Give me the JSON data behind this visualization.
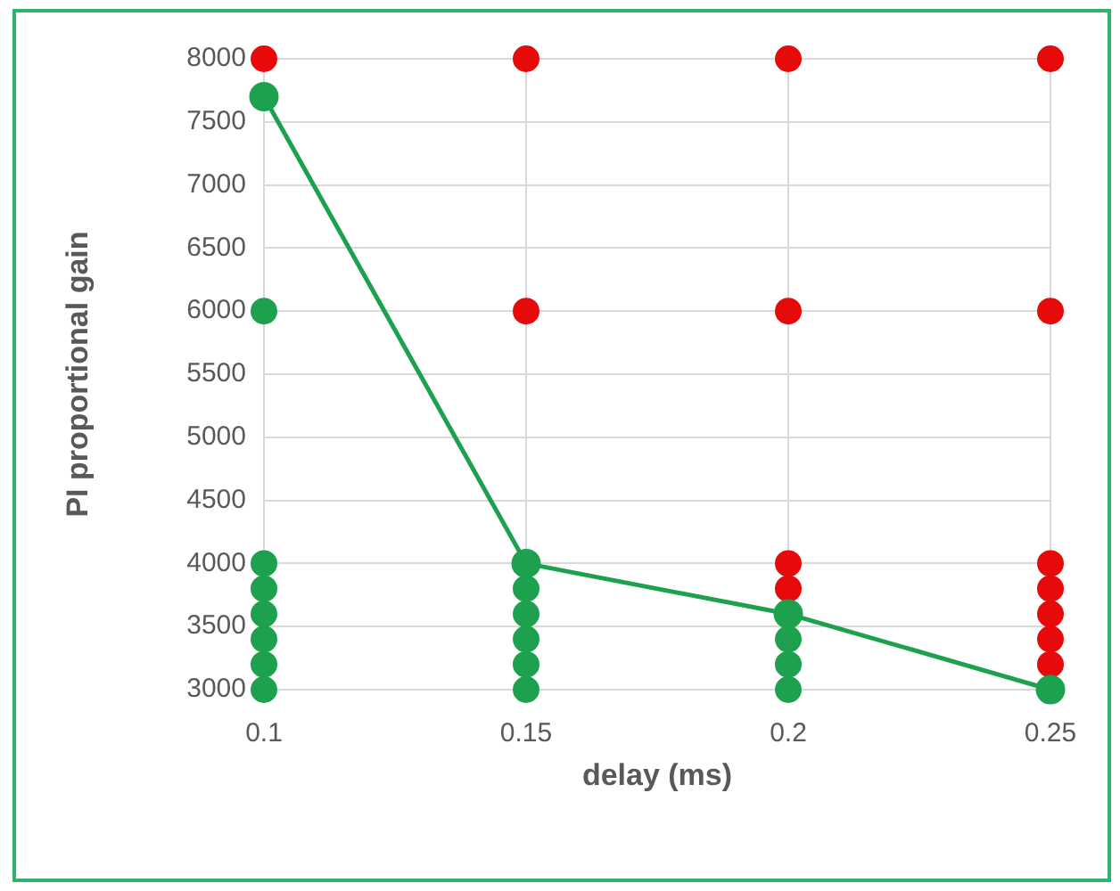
{
  "chart_data": {
    "type": "scatter",
    "xlabel": "delay (ms)",
    "ylabel": "PI proportional gain",
    "xlim": [
      0.1,
      0.25
    ],
    "xticks": [
      0.1,
      0.15,
      0.2,
      0.25
    ],
    "ylim": [
      3000,
      8000
    ],
    "yticks": [
      3000,
      3500,
      4000,
      4500,
      5000,
      5500,
      6000,
      6500,
      7000,
      7500,
      8000
    ],
    "grid": true,
    "legend": false,
    "marker": "circle",
    "series": [
      {
        "type": "scatter",
        "color": "#1ea14f",
        "x": [
          0.1,
          0.1,
          0.1,
          0.1,
          0.1,
          0.1,
          0.1,
          0.15,
          0.15,
          0.15,
          0.15,
          0.15,
          0.15,
          0.2,
          0.2,
          0.2,
          0.2,
          0.25
        ],
        "values": [
          3000,
          3200,
          3400,
          3600,
          3800,
          4000,
          6000,
          3000,
          3200,
          3400,
          3600,
          3800,
          4000,
          3000,
          3200,
          3400,
          3600,
          3000
        ]
      },
      {
        "type": "scatter",
        "color": "#e60a0a",
        "x": [
          0.1,
          0.15,
          0.15,
          0.2,
          0.2,
          0.2,
          0.2,
          0.25,
          0.25,
          0.25,
          0.25,
          0.25,
          0.25,
          0.25
        ],
        "values": [
          8000,
          6000,
          8000,
          3800,
          4000,
          6000,
          8000,
          3200,
          3400,
          3600,
          3800,
          4000,
          6000,
          8000
        ]
      },
      {
        "type": "line",
        "color": "#1ea14f",
        "x": [
          0.1,
          0.15,
          0.2,
          0.25
        ],
        "values": [
          7700,
          4000,
          3600,
          3000
        ]
      }
    ]
  }
}
